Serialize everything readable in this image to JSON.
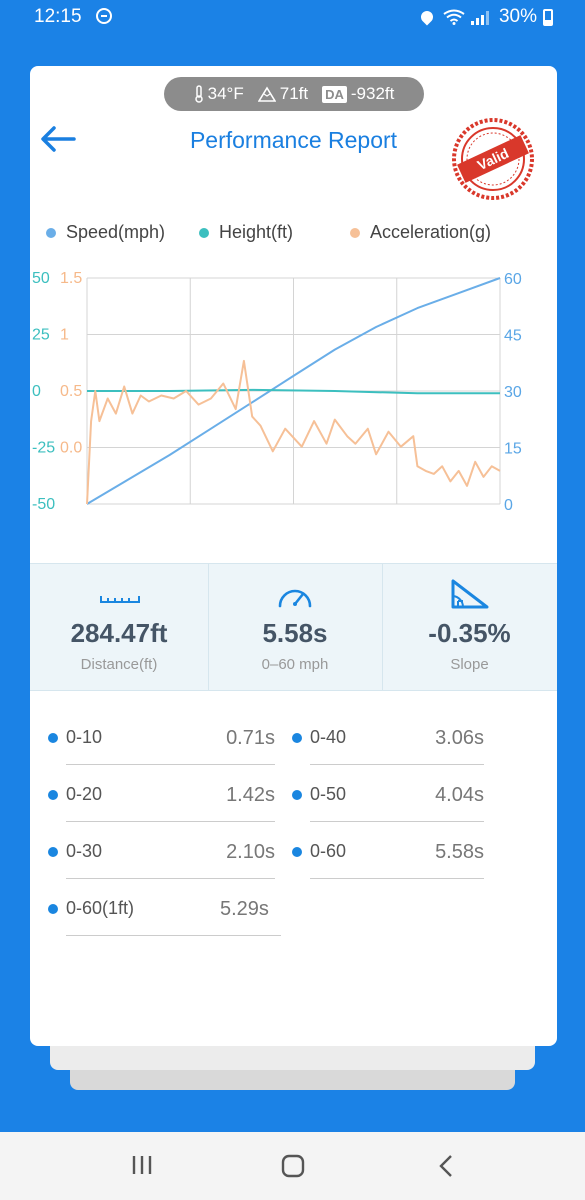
{
  "status": {
    "time": "12:15",
    "battery": "30%"
  },
  "conditions": {
    "temperature": "34°F",
    "altitude": "71ft",
    "da_label": "DA",
    "density_altitude": "-932ft"
  },
  "header": {
    "title": "Performance Report",
    "badge": "Valid"
  },
  "legend": [
    {
      "label": "Speed(mph)",
      "color": "#6aaee8"
    },
    {
      "label": "Height(ft)",
      "color": "#3cbfbf"
    },
    {
      "label": "Acceleration(g)",
      "color": "#f6c097"
    }
  ],
  "chart_data": {
    "type": "line",
    "axes": {
      "height_ticks": [
        "50",
        "25",
        "0",
        "-25",
        "-50"
      ],
      "accel_ticks": [
        "1.5",
        "1",
        "0.5",
        "0.0"
      ],
      "speed_ticks": [
        "60",
        "45",
        "30",
        "15",
        "0"
      ],
      "height_range": [
        -50,
        50
      ],
      "accel_range": [
        0,
        1.5
      ],
      "speed_range": [
        0,
        60
      ]
    },
    "grid": true,
    "series": [
      {
        "name": "Speed(mph)",
        "color": "#6aaee8",
        "axis": "speed",
        "x": [
          0,
          0.1,
          0.2,
          0.3,
          0.4,
          0.5,
          0.6,
          0.7,
          0.8,
          0.9,
          1.0
        ],
        "y": [
          0,
          6.5,
          13,
          20,
          27,
          34,
          41,
          47,
          52,
          56,
          60
        ]
      },
      {
        "name": "Height(ft)",
        "color": "#3cbfbf",
        "axis": "height",
        "x": [
          0,
          0.2,
          0.4,
          0.6,
          0.8,
          1.0
        ],
        "y": [
          0,
          0,
          0.5,
          0,
          -1,
          -1
        ]
      },
      {
        "name": "Acceleration(g)",
        "color": "#f6c097",
        "axis": "accel",
        "x": [
          0,
          0.01,
          0.02,
          0.03,
          0.05,
          0.07,
          0.09,
          0.11,
          0.13,
          0.15,
          0.18,
          0.21,
          0.24,
          0.27,
          0.3,
          0.33,
          0.36,
          0.38,
          0.4,
          0.42,
          0.45,
          0.48,
          0.52,
          0.55,
          0.58,
          0.6,
          0.63,
          0.65,
          0.68,
          0.7,
          0.73,
          0.76,
          0.79,
          0.8,
          0.82,
          0.84,
          0.86,
          0.88,
          0.9,
          0.92,
          0.94,
          0.96,
          0.98,
          1.0
        ],
        "y": [
          0.0,
          0.55,
          0.75,
          0.55,
          0.7,
          0.6,
          0.78,
          0.6,
          0.72,
          0.68,
          0.72,
          0.7,
          0.75,
          0.66,
          0.7,
          0.8,
          0.63,
          0.95,
          0.58,
          0.52,
          0.35,
          0.5,
          0.38,
          0.55,
          0.4,
          0.56,
          0.45,
          0.4,
          0.5,
          0.33,
          0.48,
          0.38,
          0.45,
          0.25,
          0.22,
          0.2,
          0.25,
          0.15,
          0.22,
          0.12,
          0.28,
          0.18,
          0.25,
          0.22
        ]
      }
    ]
  },
  "stats": [
    {
      "value": "284.47ft",
      "label": "Distance(ft)",
      "icon": "ruler-icon"
    },
    {
      "value": "5.58s",
      "label": "0–60 mph",
      "icon": "speedometer-icon"
    },
    {
      "value": "-0.35%",
      "label": "Slope",
      "icon": "slope-icon"
    }
  ],
  "times": [
    {
      "label": "0-10",
      "value": "0.71s"
    },
    {
      "label": "0-40",
      "value": "3.06s"
    },
    {
      "label": "0-20",
      "value": "1.42s"
    },
    {
      "label": "0-50",
      "value": "4.04s"
    },
    {
      "label": "0-30",
      "value": "2.10s"
    },
    {
      "label": "0-60",
      "value": "5.58s"
    },
    {
      "label": "0-60(1ft)",
      "value": "5.29s"
    }
  ]
}
